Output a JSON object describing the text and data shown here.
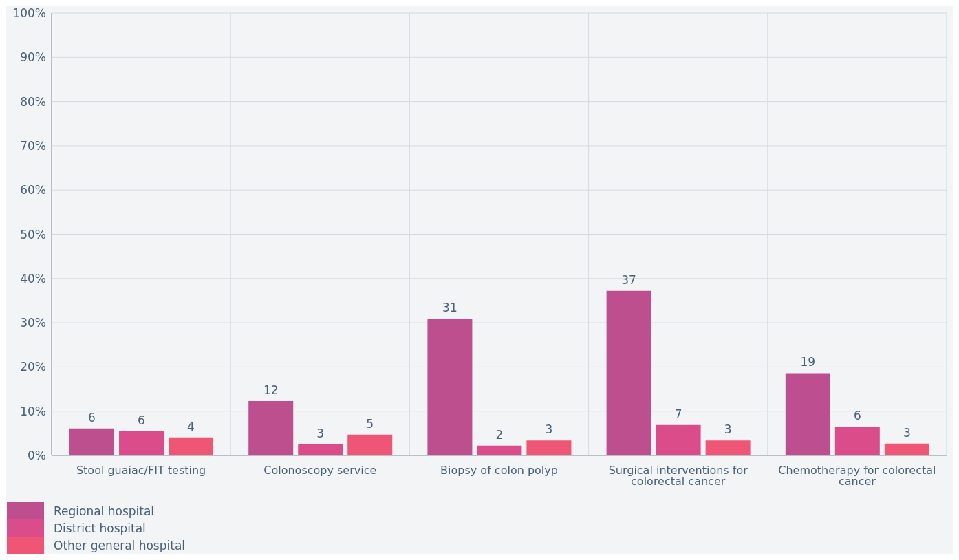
{
  "chart_data": {
    "type": "bar",
    "categories": [
      "Stool guaiac/FIT testing",
      "Colonoscopy service",
      "Biopsy of colon polyp",
      "Surgical interventions for colorectal cancer",
      "Chemotherapy for colorectal cancer"
    ],
    "series": [
      {
        "name": "Regional hospital",
        "color": "#bd4f8f",
        "values": [
          6.1,
          12.3,
          30.9,
          37.2,
          18.6
        ],
        "value_labels": [
          "6",
          "12",
          "31",
          "37",
          "19"
        ]
      },
      {
        "name": "District hospital",
        "color": "#db4d8a",
        "values": [
          5.5,
          2.5,
          2.2,
          6.9,
          6.5
        ],
        "value_labels": [
          "6",
          "3",
          "2",
          "7",
          "6"
        ]
      },
      {
        "name": "Other general hospital",
        "color": "#ef5675",
        "values": [
          4.1,
          4.7,
          3.4,
          3.4,
          2.7
        ],
        "value_labels": [
          "4",
          "5",
          "3",
          "3",
          "3"
        ]
      }
    ],
    "ylim": [
      0,
      100
    ],
    "yticks": [
      {
        "value": 0,
        "label": "0%"
      },
      {
        "value": 10,
        "label": "10%"
      },
      {
        "value": 20,
        "label": "20%"
      },
      {
        "value": 30,
        "label": "30%"
      },
      {
        "value": 40,
        "label": "40%"
      },
      {
        "value": 50,
        "label": "50%"
      },
      {
        "value": 60,
        "label": "60%"
      },
      {
        "value": 70,
        "label": "70%"
      },
      {
        "value": 80,
        "label": "80%"
      },
      {
        "value": 90,
        "label": "90%"
      },
      {
        "value": 100,
        "label": "100%"
      }
    ],
    "grid": true,
    "legend": "bottom left"
  }
}
